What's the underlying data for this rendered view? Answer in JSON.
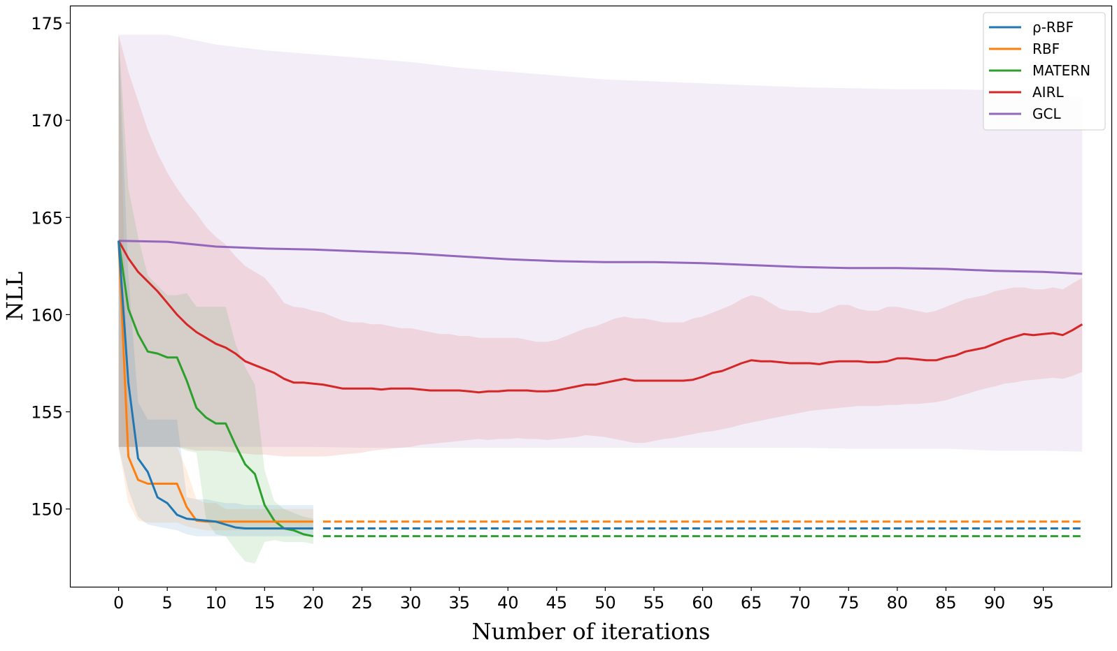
{
  "chart_data": {
    "type": "line",
    "title": "",
    "xlabel": "Number of iterations",
    "ylabel": "NLL",
    "xlim": [
      -5,
      102
    ],
    "ylim": [
      146,
      175.9
    ],
    "xticks": [
      0,
      5,
      10,
      15,
      20,
      25,
      30,
      35,
      40,
      45,
      50,
      55,
      60,
      65,
      70,
      75,
      80,
      85,
      90,
      95
    ],
    "yticks": [
      150,
      155,
      160,
      165,
      170,
      175
    ],
    "legend_position": "top-right",
    "grid": false,
    "series": [
      {
        "name": "ρ-RBF",
        "color": "#1f77b4",
        "x": [
          0,
          1,
          2,
          3,
          4,
          5,
          6,
          7,
          8,
          9,
          10,
          11,
          12,
          13,
          14,
          15,
          16,
          17,
          18,
          19,
          20
        ],
        "y": [
          163.8,
          156.5,
          152.6,
          151.9,
          150.6,
          150.3,
          149.7,
          149.5,
          149.45,
          149.4,
          149.35,
          149.2,
          149.05,
          149.0,
          149.0,
          149.0,
          149.0,
          149.0,
          149.0,
          149.0,
          149.0
        ],
        "band_upper": [
          174.4,
          162.0,
          155.5,
          154.6,
          154.6,
          154.6,
          154.6,
          150.6,
          150.5,
          150.5,
          150.4,
          150.3,
          150.3,
          150.2,
          150.2,
          150.2,
          150.2,
          150.2,
          150.2,
          150.2,
          150.2
        ],
        "band_lower": [
          153.2,
          151.0,
          149.6,
          149.2,
          149.1,
          149.0,
          148.9,
          148.7,
          148.6,
          148.6,
          148.6,
          148.6,
          148.6,
          148.6,
          148.6,
          148.6,
          148.6,
          148.6,
          148.6,
          148.6,
          148.6
        ],
        "dashed_level": 149.0,
        "dashed_x_range": [
          21,
          99
        ]
      },
      {
        "name": "RBF",
        "color": "#ff7f0e",
        "x": [
          0,
          1,
          2,
          3,
          4,
          5,
          6,
          7,
          8,
          9,
          10,
          11,
          12,
          13,
          14,
          15,
          16,
          17,
          18,
          19,
          20
        ],
        "y": [
          163.8,
          152.7,
          151.5,
          151.3,
          151.3,
          151.3,
          151.3,
          150.1,
          149.4,
          149.35,
          149.35,
          149.35,
          149.35,
          149.35,
          149.35,
          149.35,
          149.35,
          149.35,
          149.35,
          149.35,
          149.35
        ],
        "band_upper": [
          174.4,
          155.5,
          153.2,
          153.2,
          153.2,
          153.2,
          153.2,
          152.0,
          150.5,
          150.3,
          150.3,
          150.0,
          150.0,
          150.0,
          150.0,
          150.0,
          150.0,
          150.0,
          150.0,
          150.0,
          150.0
        ],
        "band_lower": [
          153.2,
          150.3,
          149.4,
          149.3,
          149.3,
          149.3,
          149.3,
          149.1,
          149.0,
          148.9,
          148.9,
          148.9,
          148.9,
          148.9,
          148.9,
          148.9,
          148.9,
          148.9,
          148.9,
          148.9,
          148.9
        ],
        "dashed_level": 149.35,
        "dashed_x_range": [
          21,
          99
        ]
      },
      {
        "name": "MATERN",
        "color": "#2ca02c",
        "x": [
          0,
          1,
          2,
          3,
          4,
          5,
          6,
          7,
          8,
          9,
          10,
          11,
          12,
          13,
          14,
          15,
          16,
          17,
          18,
          19,
          20
        ],
        "y": [
          163.8,
          160.3,
          159.0,
          158.1,
          158.0,
          157.8,
          157.8,
          156.6,
          155.2,
          154.7,
          154.4,
          154.4,
          153.3,
          152.3,
          151.8,
          150.2,
          149.4,
          149.0,
          148.9,
          148.7,
          148.6
        ],
        "band_upper": [
          174.4,
          166.5,
          164.0,
          162.0,
          161.5,
          161.0,
          161.0,
          161.1,
          160.4,
          160.4,
          160.4,
          160.4,
          158.5,
          157.3,
          156.4,
          152.0,
          150.4,
          150.0,
          149.8,
          149.6,
          149.5
        ],
        "band_lower": [
          153.2,
          153.2,
          153.2,
          153.2,
          153.2,
          153.2,
          153.2,
          153.0,
          152.9,
          149.4,
          148.7,
          148.6,
          147.9,
          147.3,
          147.2,
          148.3,
          148.4,
          148.3,
          148.3,
          148.3,
          148.2
        ],
        "dashed_level": 148.6,
        "dashed_x_range": [
          21,
          99
        ]
      },
      {
        "name": "AIRL",
        "color": "#d62728",
        "x": [
          0,
          1,
          2,
          3,
          4,
          5,
          6,
          7,
          8,
          9,
          10,
          11,
          12,
          13,
          14,
          15,
          16,
          17,
          18,
          19,
          20,
          21,
          22,
          23,
          24,
          25,
          26,
          27,
          28,
          29,
          30,
          31,
          32,
          33,
          34,
          35,
          36,
          37,
          38,
          39,
          40,
          41,
          42,
          43,
          44,
          45,
          46,
          47,
          48,
          49,
          50,
          51,
          52,
          53,
          54,
          55,
          56,
          57,
          58,
          59,
          60,
          61,
          62,
          63,
          64,
          65,
          66,
          67,
          68,
          69,
          70,
          71,
          72,
          73,
          74,
          75,
          76,
          77,
          78,
          79,
          80,
          81,
          82,
          83,
          84,
          85,
          86,
          87,
          88,
          89,
          90,
          91,
          92,
          93,
          94,
          95,
          96,
          97,
          98,
          99
        ],
        "y": [
          163.8,
          162.9,
          162.2,
          161.7,
          161.2,
          160.6,
          160.0,
          159.5,
          159.1,
          158.8,
          158.5,
          158.3,
          158.0,
          157.6,
          157.4,
          157.2,
          157.0,
          156.7,
          156.5,
          156.5,
          156.45,
          156.4,
          156.3,
          156.2,
          156.2,
          156.2,
          156.2,
          156.15,
          156.2,
          156.2,
          156.2,
          156.15,
          156.1,
          156.1,
          156.1,
          156.1,
          156.05,
          156.0,
          156.05,
          156.05,
          156.1,
          156.1,
          156.1,
          156.05,
          156.05,
          156.1,
          156.2,
          156.3,
          156.4,
          156.4,
          156.5,
          156.6,
          156.7,
          156.6,
          156.6,
          156.6,
          156.6,
          156.6,
          156.6,
          156.65,
          156.8,
          157.0,
          157.1,
          157.3,
          157.5,
          157.65,
          157.6,
          157.6,
          157.55,
          157.5,
          157.5,
          157.5,
          157.45,
          157.55,
          157.6,
          157.6,
          157.6,
          157.55,
          157.55,
          157.6,
          157.75,
          157.75,
          157.7,
          157.65,
          157.65,
          157.8,
          157.9,
          158.1,
          158.2,
          158.3,
          158.5,
          158.7,
          158.85,
          159.0,
          158.95,
          159.0,
          159.05,
          158.95,
          159.2,
          159.5
        ],
        "band_upper": [
          174.4,
          172.5,
          171.0,
          169.5,
          168.3,
          167.3,
          166.5,
          165.8,
          165.2,
          164.5,
          164.0,
          163.6,
          163.0,
          162.5,
          162.2,
          161.9,
          161.3,
          160.6,
          160.4,
          160.35,
          160.2,
          160.1,
          159.9,
          159.7,
          159.6,
          159.6,
          159.5,
          159.5,
          159.4,
          159.3,
          159.3,
          159.2,
          159.1,
          159.0,
          159.0,
          158.9,
          158.9,
          158.8,
          158.8,
          158.8,
          158.8,
          158.8,
          158.7,
          158.6,
          158.6,
          158.7,
          158.9,
          159.1,
          159.3,
          159.4,
          159.6,
          159.8,
          159.9,
          159.8,
          159.8,
          159.7,
          159.6,
          159.6,
          159.6,
          159.8,
          159.9,
          160.1,
          160.3,
          160.5,
          160.8,
          161.0,
          160.9,
          160.6,
          160.3,
          160.2,
          160.2,
          160.1,
          160.1,
          160.3,
          160.5,
          160.5,
          160.3,
          160.2,
          160.2,
          160.4,
          160.4,
          160.3,
          160.2,
          160.1,
          160.2,
          160.4,
          160.6,
          160.8,
          160.9,
          161.0,
          161.2,
          161.3,
          161.4,
          161.4,
          161.3,
          161.3,
          161.4,
          161.3,
          161.6,
          161.9
        ],
        "band_lower": [
          153.2,
          153.2,
          153.2,
          153.2,
          153.2,
          153.2,
          153.2,
          153.1,
          153.0,
          153.0,
          153.0,
          152.95,
          152.9,
          152.85,
          152.8,
          152.8,
          152.75,
          152.7,
          152.7,
          152.7,
          152.7,
          152.7,
          152.75,
          152.8,
          152.85,
          152.9,
          153.0,
          153.05,
          153.1,
          153.15,
          153.2,
          153.3,
          153.35,
          153.4,
          153.45,
          153.5,
          153.55,
          153.6,
          153.55,
          153.6,
          153.6,
          153.65,
          153.6,
          153.6,
          153.55,
          153.6,
          153.65,
          153.7,
          153.8,
          153.75,
          153.7,
          153.6,
          153.5,
          153.4,
          153.4,
          153.5,
          153.6,
          153.65,
          153.75,
          153.85,
          153.95,
          154.0,
          154.1,
          154.2,
          154.35,
          154.45,
          154.55,
          154.65,
          154.75,
          154.85,
          154.95,
          155.05,
          155.1,
          155.15,
          155.2,
          155.25,
          155.3,
          155.3,
          155.3,
          155.35,
          155.35,
          155.4,
          155.4,
          155.45,
          155.5,
          155.6,
          155.75,
          155.9,
          156.05,
          156.2,
          156.3,
          156.45,
          156.5,
          156.6,
          156.65,
          156.7,
          156.75,
          156.7,
          156.85,
          157.05
        ]
      },
      {
        "name": "GCL",
        "color": "#9467bd",
        "x": [
          0,
          5,
          10,
          15,
          20,
          25,
          30,
          35,
          40,
          45,
          50,
          55,
          60,
          65,
          70,
          75,
          80,
          85,
          90,
          95,
          99
        ],
        "y": [
          163.8,
          163.75,
          163.5,
          163.4,
          163.35,
          163.25,
          163.15,
          163.0,
          162.85,
          162.75,
          162.7,
          162.7,
          162.65,
          162.55,
          162.45,
          162.4,
          162.4,
          162.35,
          162.25,
          162.2,
          162.1
        ],
        "band_upper": [
          174.4,
          174.4,
          173.9,
          173.6,
          173.4,
          173.2,
          173.0,
          172.7,
          172.5,
          172.3,
          172.1,
          172.0,
          171.9,
          171.8,
          171.7,
          171.65,
          171.6,
          171.6,
          171.55,
          171.4,
          171.2
        ],
        "band_lower": [
          153.2,
          153.2,
          153.2,
          153.2,
          153.2,
          153.15,
          153.15,
          153.15,
          153.15,
          153.15,
          153.15,
          153.15,
          153.15,
          153.15,
          153.15,
          153.1,
          153.1,
          153.1,
          153.0,
          153.0,
          152.95
        ]
      }
    ]
  }
}
